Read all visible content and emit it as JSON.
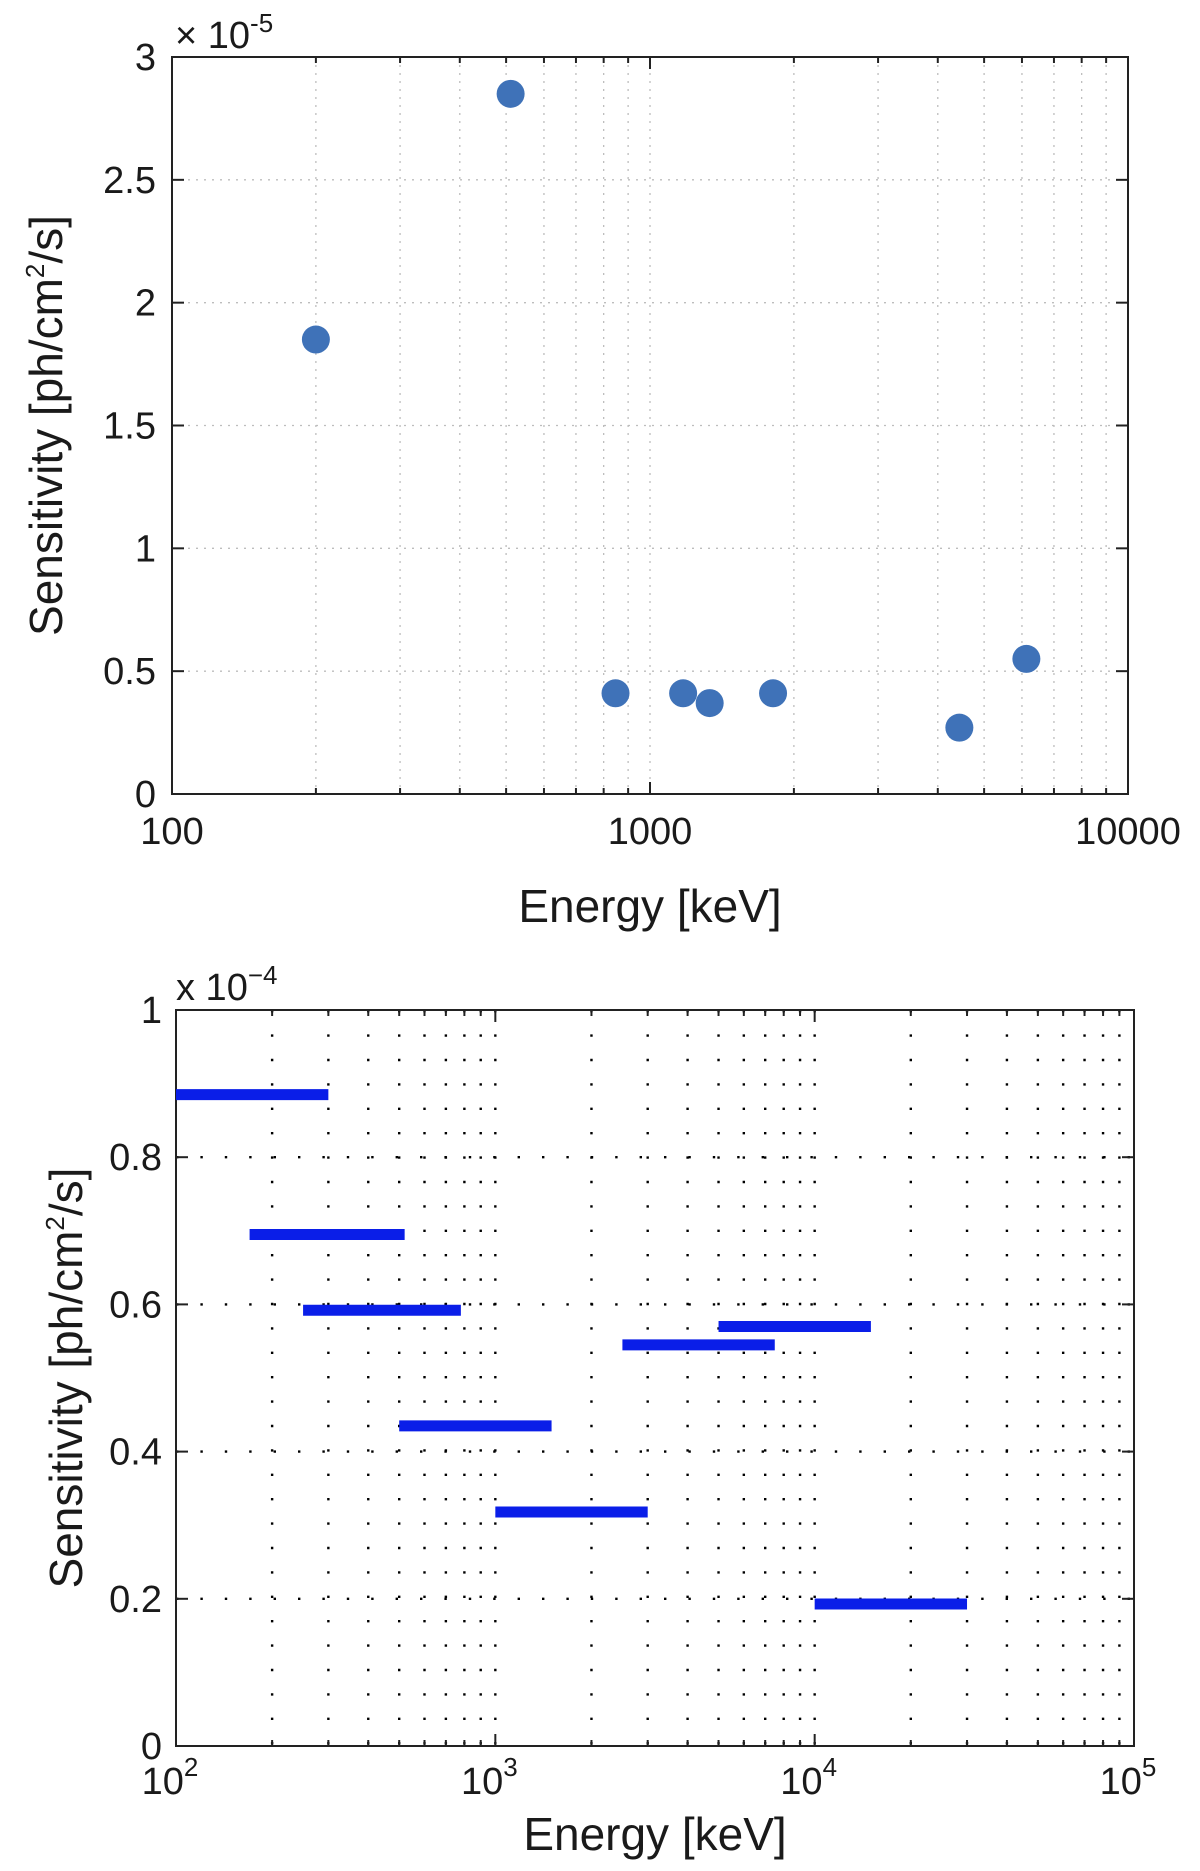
{
  "chart_data": [
    {
      "type": "scatter",
      "title": "",
      "xlabel": "Energy [keV]",
      "ylabel_main": "Sensitivity [ph/cm",
      "ylabel_sup": "2",
      "ylabel_tail": "/s]",
      "x_scale": "log",
      "xlim": [
        100,
        10000
      ],
      "ylim": [
        0,
        3
      ],
      "y_multiplier": "× 10",
      "y_multiplier_exp": "-5",
      "grid": true,
      "xticks": [
        100,
        1000,
        10000
      ],
      "xtick_labels": [
        "100",
        "1000",
        "10000"
      ],
      "yticks": [
        0,
        0.5,
        1,
        1.5,
        2,
        2.5,
        3
      ],
      "ytick_labels": [
        "0",
        "0.5",
        "1",
        "1.5",
        "2",
        "2.5",
        "3"
      ],
      "point_color": "#3f72b8",
      "points": [
        {
          "x": 200,
          "y": 1.85
        },
        {
          "x": 511,
          "y": 2.85
        },
        {
          "x": 847,
          "y": 0.41
        },
        {
          "x": 1173,
          "y": 0.41
        },
        {
          "x": 1333,
          "y": 0.37
        },
        {
          "x": 1809,
          "y": 0.41
        },
        {
          "x": 4438,
          "y": 0.27
        },
        {
          "x": 6129,
          "y": 0.55
        }
      ]
    },
    {
      "type": "bar",
      "subtype": "horizontal-interval",
      "title": "",
      "xlabel": "Energy [keV]",
      "ylabel_main": "Sensitivity [ph/cm",
      "ylabel_sup": "2",
      "ylabel_tail": "/s]",
      "x_scale": "log",
      "xlim": [
        100,
        100000
      ],
      "ylim": [
        0,
        1
      ],
      "y_multiplier": "x 10",
      "y_multiplier_exp": "−4",
      "grid": true,
      "xticks": [
        100,
        1000,
        10000,
        100000
      ],
      "xtick_bases": [
        "10",
        "10",
        "10",
        "10"
      ],
      "xtick_exps": [
        "2",
        "3",
        "4",
        "5"
      ],
      "yticks": [
        0,
        0.2,
        0.4,
        0.6,
        0.8,
        1
      ],
      "ytick_labels": [
        "0",
        "0.2",
        "0.4",
        "0.6",
        "0.8",
        "1"
      ],
      "bar_color": "#0a1ee8",
      "segments": [
        {
          "x0": 100,
          "x1": 300,
          "y": 0.885
        },
        {
          "x0": 170,
          "x1": 520,
          "y": 0.695
        },
        {
          "x0": 250,
          "x1": 780,
          "y": 0.592
        },
        {
          "x0": 500,
          "x1": 1500,
          "y": 0.435
        },
        {
          "x0": 1000,
          "x1": 3000,
          "y": 0.318
        },
        {
          "x0": 2500,
          "x1": 7500,
          "y": 0.545
        },
        {
          "x0": 5000,
          "x1": 15000,
          "y": 0.57
        },
        {
          "x0": 10000,
          "x1": 30000,
          "y": 0.193
        }
      ]
    }
  ]
}
